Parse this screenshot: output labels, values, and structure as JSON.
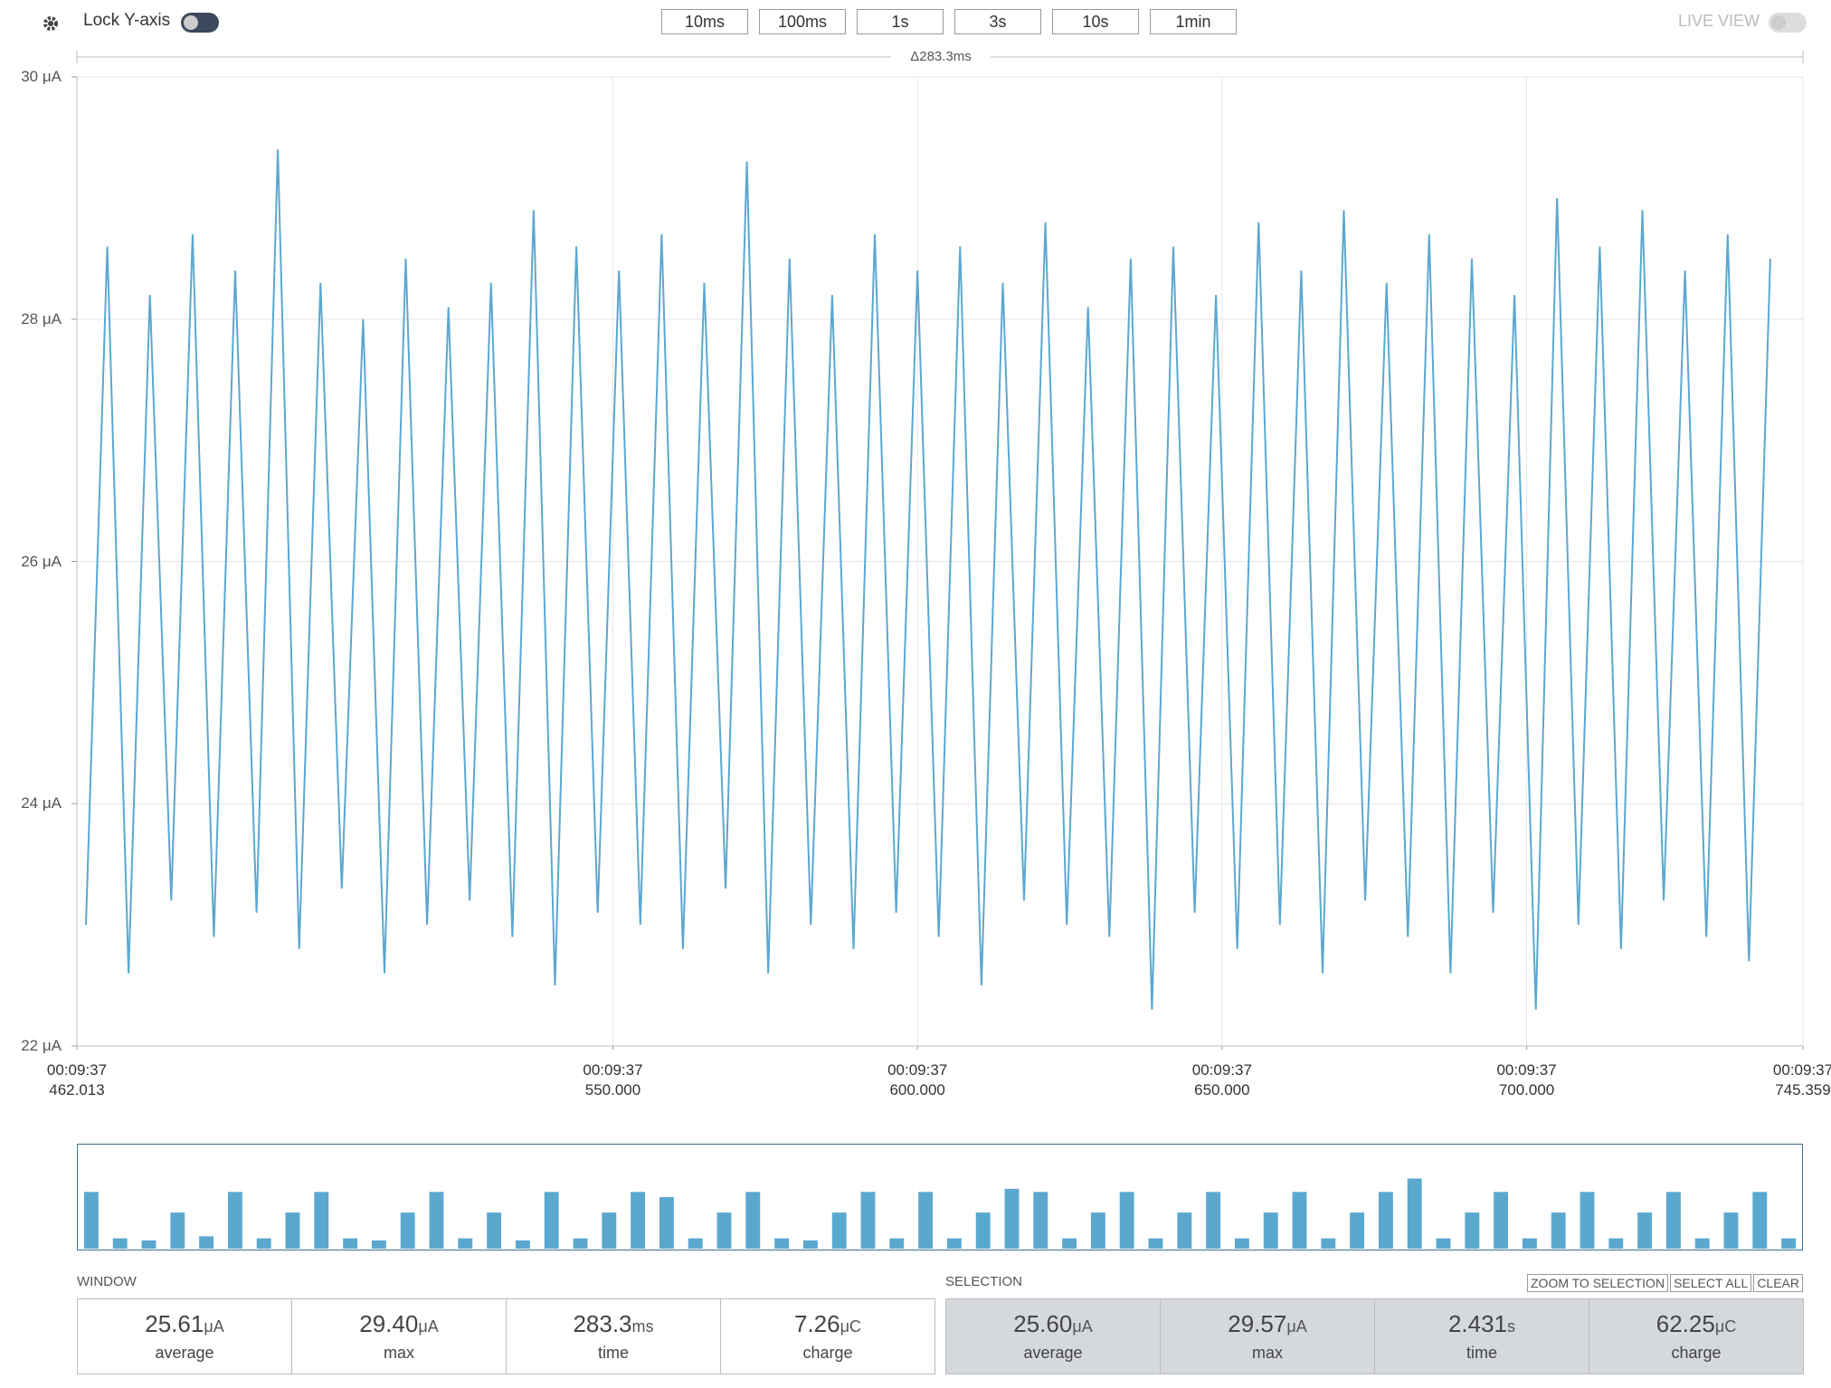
{
  "toolbar": {
    "lock_label": "Lock Y-axis",
    "time_buttons": [
      "10ms",
      "100ms",
      "1s",
      "3s",
      "10s",
      "1min"
    ],
    "live_view": "LIVE VIEW"
  },
  "chart_data": [
    {
      "type": "line",
      "span_label": "Δ283.3ms",
      "color": "#5ba8cf",
      "grid": true,
      "xlim": [
        462.013,
        745.359
      ],
      "ylim": [
        22,
        30
      ],
      "yticks": [
        {
          "value": 22,
          "label": "22 μA"
        },
        {
          "value": 24,
          "label": "24 μA"
        },
        {
          "value": 26,
          "label": "26 μA"
        },
        {
          "value": 28,
          "label": "28 μA"
        },
        {
          "value": 30,
          "label": "30 μA"
        }
      ],
      "xticks": [
        {
          "value": 462.013,
          "label": "00:09:37\n462.013"
        },
        {
          "value": 550,
          "label": "00:09:37\n550.000"
        },
        {
          "value": 600,
          "label": "00:09:37\n600.000"
        },
        {
          "value": 650,
          "label": "00:09:37\n650.000"
        },
        {
          "value": 700,
          "label": "00:09:37\n700.000"
        },
        {
          "value": 745.359,
          "label": "00:09:37\n745.359"
        }
      ],
      "x": [
        463.5,
        467,
        470.5,
        474,
        477.5,
        481,
        484.5,
        488,
        491.5,
        495,
        498.5,
        502,
        505.5,
        509,
        512.5,
        516,
        519.5,
        523,
        526.5,
        530,
        533.5,
        537,
        540.5,
        544,
        547.5,
        551,
        554.5,
        558,
        561.5,
        565,
        568.5,
        572,
        575.5,
        579,
        582.5,
        586,
        589.5,
        593,
        596.5,
        600,
        603.5,
        607,
        610.5,
        614,
        617.5,
        621,
        624.5,
        628,
        631.5,
        635,
        638.5,
        642,
        645.5,
        649,
        652.5,
        656,
        659.5,
        663,
        666.5,
        670,
        673.5,
        677,
        680.5,
        684,
        687.5,
        691,
        694.5,
        698,
        701.5,
        705,
        708.5,
        712,
        715.5,
        719,
        722.5,
        726,
        729.5,
        733,
        736.5,
        740
      ],
      "series": [
        {
          "name": "current",
          "values": [
            23.0,
            28.6,
            22.6,
            28.2,
            23.2,
            28.7,
            22.9,
            28.4,
            23.1,
            29.4,
            22.8,
            28.3,
            23.3,
            28.0,
            22.6,
            28.5,
            23.0,
            28.1,
            23.2,
            28.3,
            22.9,
            28.9,
            22.5,
            28.6,
            23.1,
            28.4,
            23.0,
            28.7,
            22.8,
            28.3,
            23.3,
            29.3,
            22.6,
            28.5,
            23.0,
            28.2,
            22.8,
            28.7,
            23.1,
            28.4,
            22.9,
            28.6,
            22.5,
            28.3,
            23.2,
            28.8,
            23.0,
            28.1,
            22.9,
            28.5,
            22.3,
            28.6,
            23.1,
            28.2,
            22.8,
            28.8,
            23.0,
            28.4,
            22.6,
            28.9,
            23.2,
            28.3,
            22.9,
            28.7,
            22.6,
            28.5,
            23.1,
            28.2,
            22.3,
            29.0,
            23.0,
            28.6,
            22.8,
            28.9,
            23.2,
            28.4,
            22.9,
            28.7,
            22.7,
            28.5
          ]
        }
      ]
    },
    {
      "type": "bar",
      "color": "#5ba8cf",
      "ylim": [
        0,
        1
      ],
      "values": [
        0.55,
        0.1,
        0.08,
        0.35,
        0.12,
        0.55,
        0.1,
        0.35,
        0.55,
        0.1,
        0.08,
        0.35,
        0.55,
        0.1,
        0.35,
        0.08,
        0.55,
        0.1,
        0.35,
        0.55,
        0.5,
        0.1,
        0.35,
        0.55,
        0.1,
        0.08,
        0.35,
        0.55,
        0.1,
        0.55,
        0.1,
        0.35,
        0.58,
        0.55,
        0.1,
        0.35,
        0.55,
        0.1,
        0.35,
        0.55,
        0.1,
        0.35,
        0.55,
        0.1,
        0.35,
        0.55,
        0.68,
        0.1,
        0.35,
        0.55,
        0.1,
        0.35,
        0.55,
        0.1,
        0.35,
        0.55,
        0.1,
        0.35,
        0.55,
        0.1
      ]
    }
  ],
  "window": {
    "title": "WINDOW",
    "stats": [
      {
        "value": "25.61",
        "unit": "μA",
        "label": "average"
      },
      {
        "value": "29.40",
        "unit": "μA",
        "label": "max"
      },
      {
        "value": "283.3",
        "unit": "ms",
        "label": "time"
      },
      {
        "value": "7.26",
        "unit": "μC",
        "label": "charge"
      }
    ]
  },
  "selection": {
    "title": "SELECTION",
    "buttons": [
      "ZOOM TO SELECTION",
      "SELECT ALL",
      "CLEAR"
    ],
    "stats": [
      {
        "value": "25.60",
        "unit": "μA",
        "label": "average"
      },
      {
        "value": "29.57",
        "unit": "μA",
        "label": "max"
      },
      {
        "value": "2.431",
        "unit": "s",
        "label": "time"
      },
      {
        "value": "62.25",
        "unit": "μC",
        "label": "charge"
      }
    ]
  }
}
